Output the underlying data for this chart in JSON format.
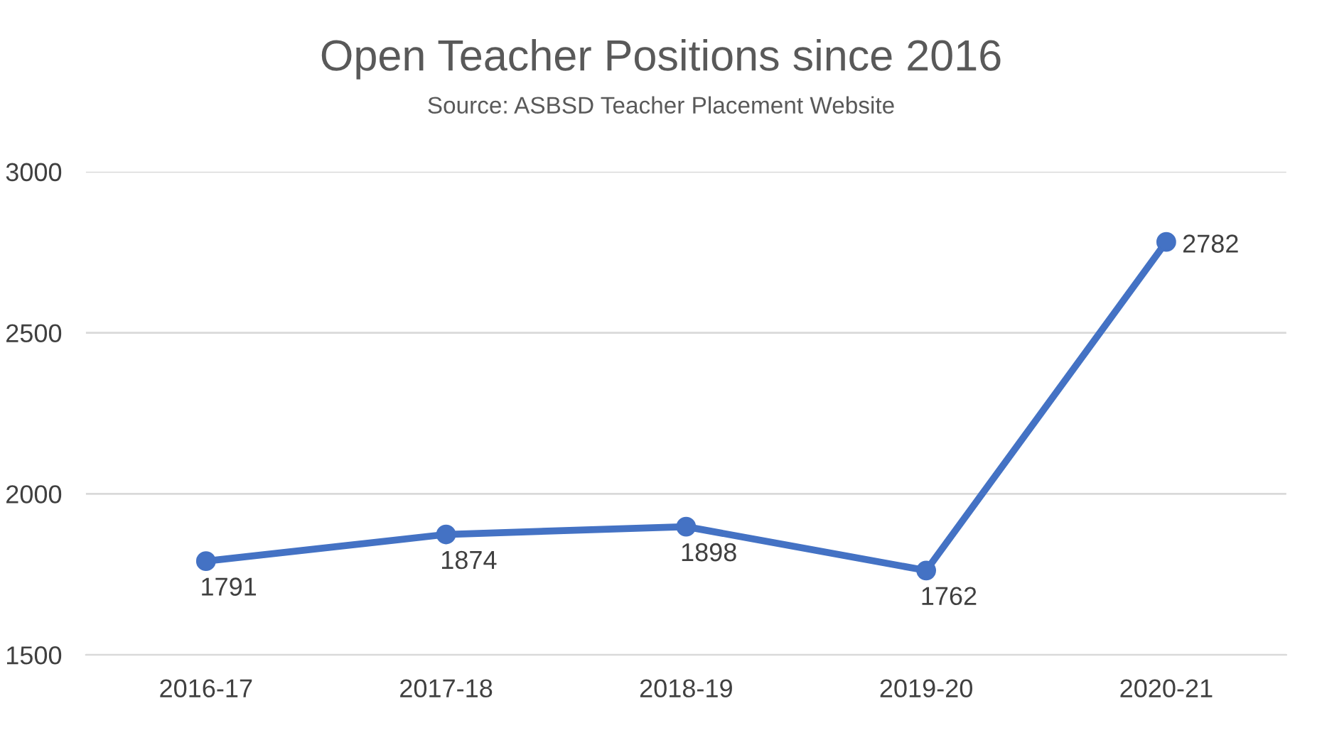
{
  "chart_data": {
    "type": "line",
    "title": "Open Teacher Positions since 2016",
    "annotations": [
      "Source: ASBSD Teacher Placement Website"
    ],
    "categories": [
      "2016-17",
      "2017-18",
      "2018-19",
      "2019-20",
      "2020-21"
    ],
    "series": [
      {
        "color": "#4472c4",
        "values": [
          1791,
          1874,
          1898,
          1762,
          2782
        ]
      }
    ],
    "ylim": [
      1500,
      3000
    ],
    "yticks": [
      1500,
      2000,
      2500,
      3000
    ],
    "grid": "y",
    "marker": "circle",
    "line_style": "solid",
    "data_labels": true,
    "legend": false
  }
}
